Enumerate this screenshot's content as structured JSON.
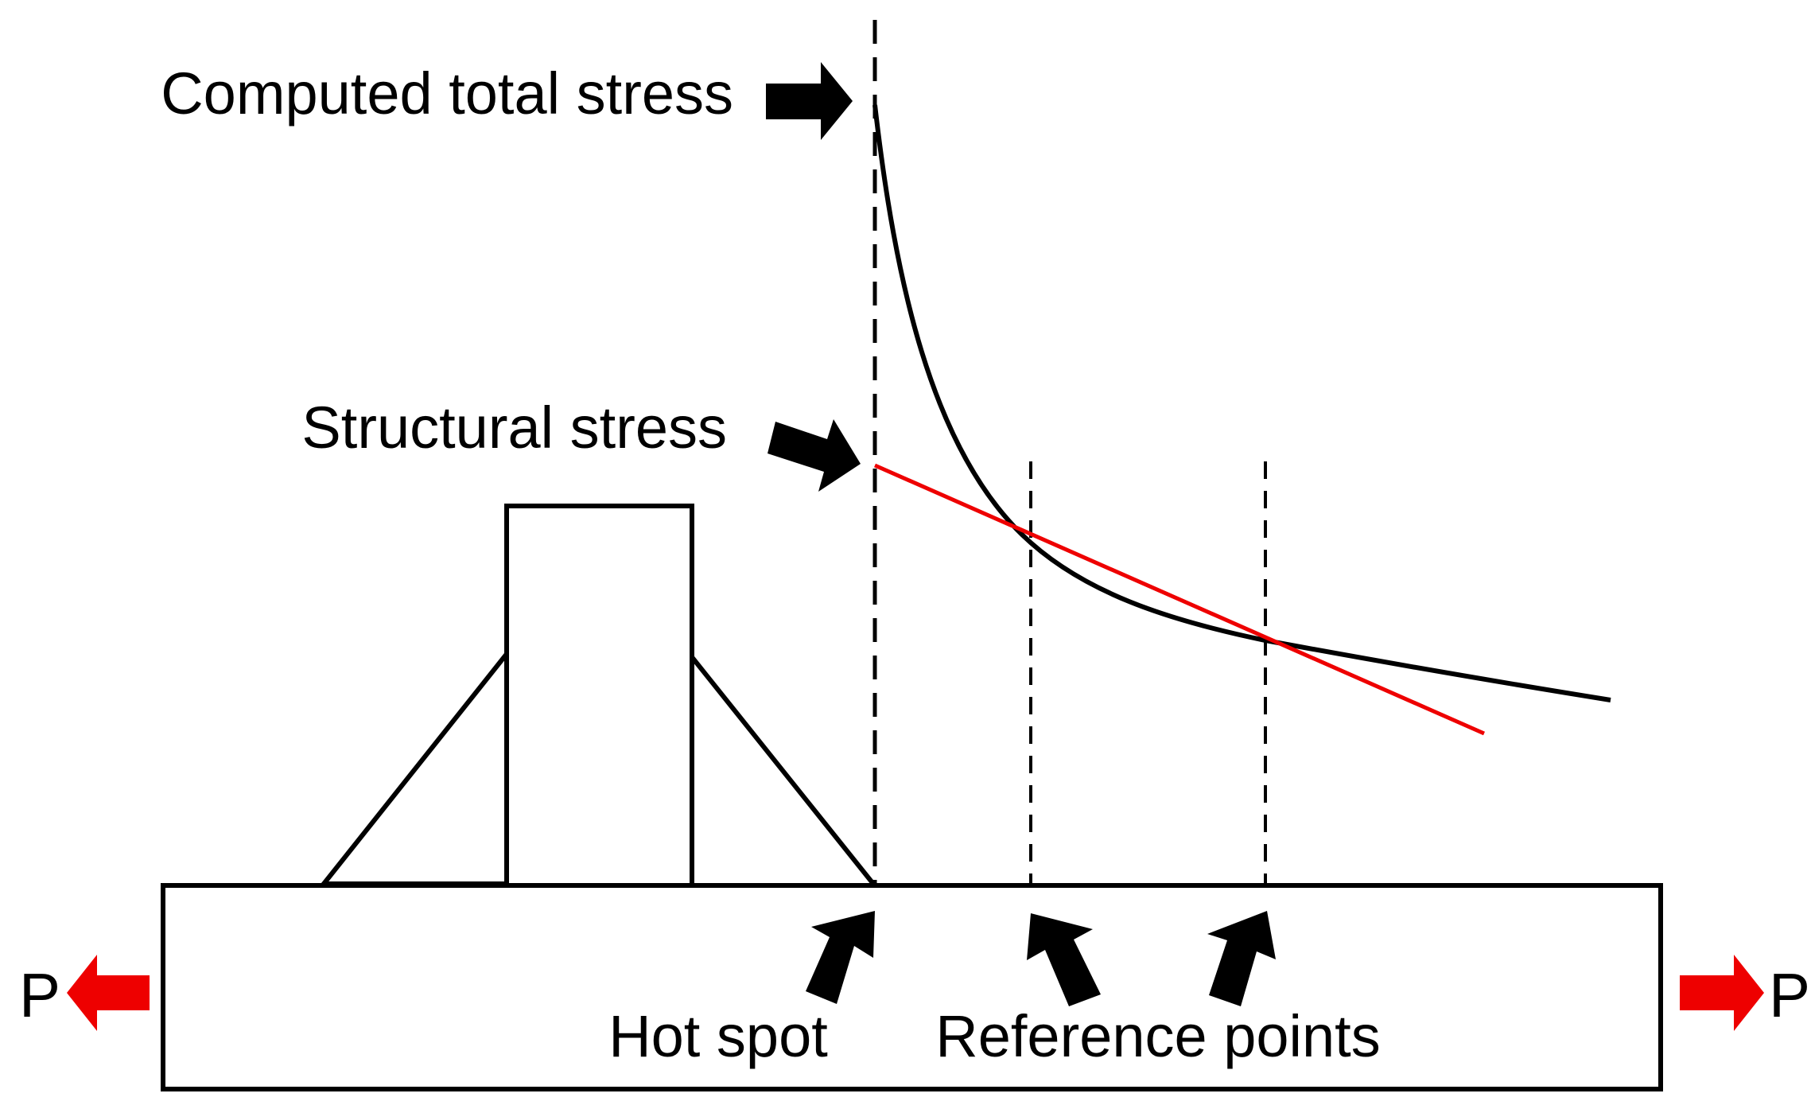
{
  "labels": {
    "computed_total_stress": "Computed total stress",
    "structural_stress": "Structural stress",
    "hot_spot": "Hot spot",
    "reference_points": "Reference points",
    "load_left": "P",
    "load_right": "P"
  },
  "colors": {
    "outline": "#000000",
    "extrapolation_line": "#ee0000",
    "load_arrow": "#ee0000",
    "background": "#ffffff"
  },
  "icons": {
    "pointer_arrows": "black-block-arrow",
    "load_arrows": "red-block-arrow"
  }
}
